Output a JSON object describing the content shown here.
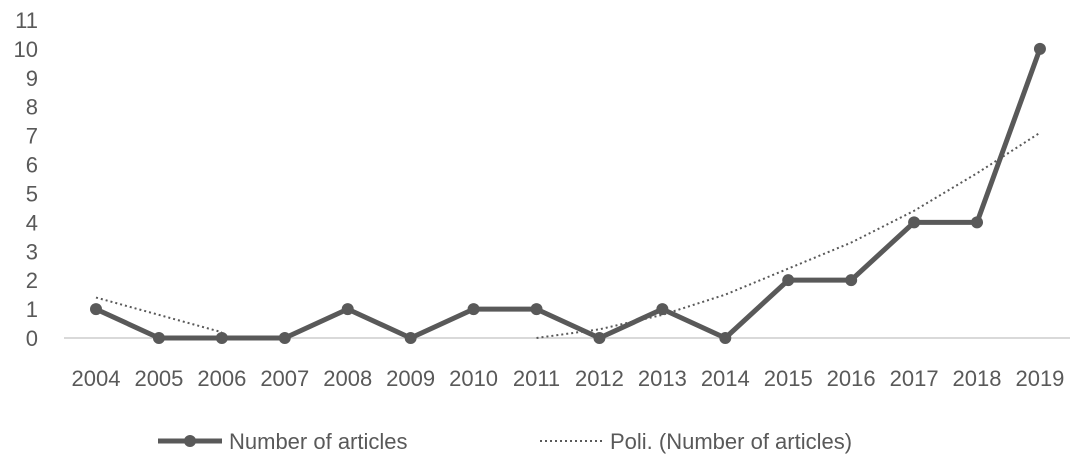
{
  "chart_data": {
    "type": "line",
    "x": [
      "2004",
      "2005",
      "2006",
      "2007",
      "2008",
      "2009",
      "2010",
      "2011",
      "2012",
      "2013",
      "2014",
      "2015",
      "2016",
      "2017",
      "2018",
      "2019"
    ],
    "series": [
      {
        "name": "Number of articles",
        "values": [
          1,
          0,
          0,
          0,
          1,
          0,
          1,
          1,
          0,
          1,
          0,
          2,
          2,
          4,
          4,
          10
        ],
        "style": "solid-with-markers"
      },
      {
        "name": "Poli. (Number of articles)",
        "values": [
          1.4,
          0.8,
          0.2,
          null,
          null,
          null,
          null,
          0,
          0.3,
          0.8,
          1.5,
          2.4,
          3.3,
          4.4,
          5.7,
          7.1
        ],
        "style": "dotted-trendline"
      }
    ],
    "ylim": [
      0,
      11
    ],
    "yticks": [
      "0",
      "1",
      "2",
      "3",
      "4",
      "5",
      "6",
      "7",
      "8",
      "9",
      "10",
      "11"
    ],
    "grid": false,
    "legend": "bottom",
    "colors": {
      "series": "#595959",
      "trend": "#595959",
      "axis": "#d9d9d9",
      "text": "#595959"
    }
  }
}
